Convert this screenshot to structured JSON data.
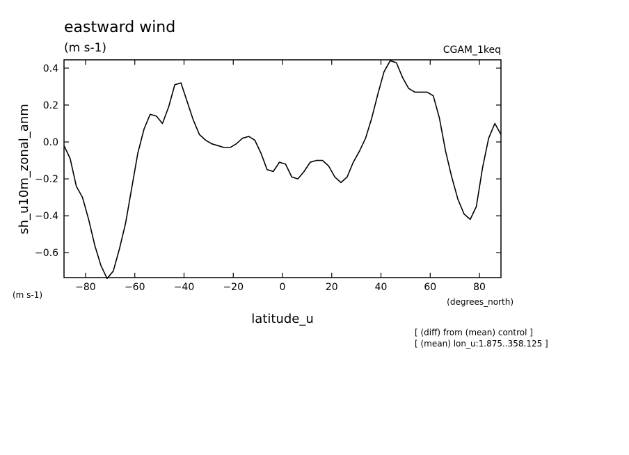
{
  "chart_data": {
    "type": "line",
    "title": "eastward wind",
    "subtitle": "(m s-1)",
    "dataset": "CGAM_1keq",
    "xlabel": "latitude_u",
    "x_units": "(degrees_north)",
    "ylabel": "sh_u10m_zonal_anm",
    "y_units": "(m s-1)",
    "notes": [
      "[ (diff) from (mean) control ]",
      "[ (mean) lon_u:1.875..358.125 ]"
    ],
    "xlim": [
      -88.75,
      88.75
    ],
    "ylim": [
      -0.735,
      0.445
    ],
    "xticks": [
      -80,
      -60,
      -40,
      -20,
      0,
      20,
      40,
      60,
      80
    ],
    "xtick_labels": [
      "−80",
      "−60",
      "−40",
      "−20",
      "0",
      "20",
      "40",
      "60",
      "80"
    ],
    "yticks": [
      -0.6,
      -0.4,
      -0.2,
      0.0,
      0.2,
      0.4
    ],
    "ytick_labels": [
      "−0.6",
      "−0.4",
      "−0.2",
      "0.0",
      "0.2",
      "0.4"
    ],
    "grid": false,
    "line_color": "#000000",
    "series": [
      {
        "x": [
          -88.75,
          -86.25,
          -83.75,
          -81.25,
          -78.75,
          -76.25,
          -73.75,
          -71.25,
          -68.75,
          -66.25,
          -63.75,
          -61.25,
          -58.75,
          -56.25,
          -53.75,
          -51.25,
          -48.75,
          -46.25,
          -43.75,
          -41.25,
          -38.75,
          -36.25,
          -33.75,
          -31.25,
          -28.75,
          -26.25,
          -23.75,
          -21.25,
          -18.75,
          -16.25,
          -13.75,
          -11.25,
          -8.75,
          -6.25,
          -3.75,
          -1.25,
          1.25,
          3.75,
          6.25,
          8.75,
          11.25,
          13.75,
          16.25,
          18.75,
          21.25,
          23.75,
          26.25,
          28.75,
          31.25,
          33.75,
          36.25,
          38.75,
          41.25,
          43.75,
          46.25,
          48.75,
          51.25,
          53.75,
          56.25,
          58.75,
          61.25,
          63.75,
          66.25,
          68.75,
          71.25,
          73.75,
          76.25,
          78.75,
          81.25,
          83.75,
          86.25,
          88.75
        ],
        "y": [
          -0.02,
          -0.09,
          -0.24,
          -0.3,
          -0.42,
          -0.56,
          -0.67,
          -0.74,
          -0.7,
          -0.58,
          -0.44,
          -0.25,
          -0.06,
          0.07,
          0.15,
          0.14,
          0.1,
          0.19,
          0.31,
          0.32,
          0.22,
          0.12,
          0.04,
          0.01,
          -0.01,
          -0.02,
          -0.03,
          -0.03,
          -0.01,
          0.02,
          0.03,
          0.01,
          -0.06,
          -0.15,
          -0.16,
          -0.11,
          -0.12,
          -0.19,
          -0.2,
          -0.16,
          -0.11,
          -0.1,
          -0.1,
          -0.13,
          -0.19,
          -0.22,
          -0.19,
          -0.11,
          -0.05,
          0.02,
          0.13,
          0.26,
          0.38,
          0.44,
          0.43,
          0.35,
          0.29,
          0.27,
          0.27,
          0.27,
          0.25,
          0.13,
          -0.05,
          -0.19,
          -0.31,
          -0.39,
          -0.42,
          -0.35,
          -0.14,
          0.02,
          0.1,
          0.04
        ]
      }
    ]
  }
}
